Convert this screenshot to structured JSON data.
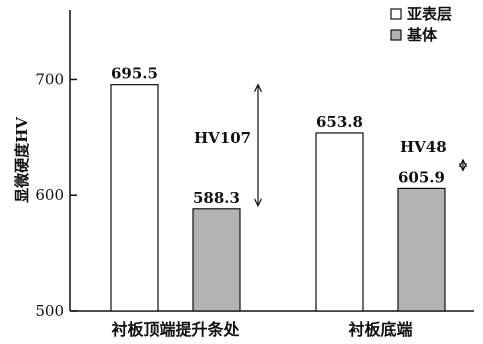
{
  "chart_data": {
    "type": "bar",
    "ylabel": "显微硬度HV",
    "ylim": [
      500,
      760
    ],
    "yticks": [
      500,
      600,
      700
    ],
    "grid": false,
    "legend_position": "top-right",
    "categories": [
      "衬板顶端提升条处",
      "衬板底端"
    ],
    "series": [
      {
        "name": "亚表层",
        "values": [
          695.5,
          653.8
        ],
        "color": "#ffffff"
      },
      {
        "name": "基体",
        "values": [
          588.3,
          605.9
        ],
        "color": "#b3b3b3"
      }
    ],
    "value_labels": [
      [
        "695.5",
        "653.8"
      ],
      [
        "588.3",
        "605.9"
      ]
    ],
    "annotations": [
      {
        "text": "HV107",
        "category_index": 0
      },
      {
        "text": "HV48",
        "category_index": 1
      }
    ]
  }
}
